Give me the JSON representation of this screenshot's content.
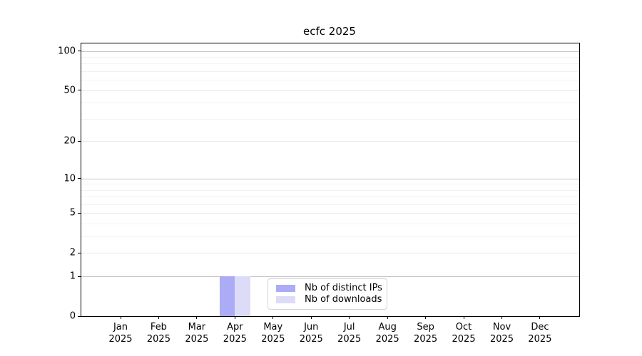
{
  "chart_data": {
    "type": "bar",
    "title": "ecfc 2025",
    "categories": [
      "Jan",
      "Feb",
      "Mar",
      "Apr",
      "May",
      "Jun",
      "Jul",
      "Aug",
      "Sep",
      "Oct",
      "Nov",
      "Dec"
    ],
    "x_year_label": "2025",
    "series": [
      {
        "name": "Nb of distinct IPs",
        "color": "#ababf6",
        "values": [
          0,
          0,
          0,
          1,
          0,
          0,
          0,
          0,
          0,
          0,
          0,
          0
        ]
      },
      {
        "name": "Nb of downloads",
        "color": "#dcdcf8",
        "values": [
          0,
          0,
          0,
          1,
          0,
          0,
          0,
          0,
          0,
          0,
          0,
          0
        ]
      }
    ],
    "y_axis": {
      "scale": "log1p",
      "ticks": [
        0,
        1,
        2,
        5,
        10,
        20,
        50,
        100
      ],
      "emphasized_gridlines": [
        1,
        10,
        100
      ],
      "minor_gridlines": [
        3,
        4,
        6,
        7,
        8,
        9,
        30,
        40,
        60,
        70,
        80,
        90
      ],
      "max": 115
    },
    "legend": {
      "position": "lower-center"
    },
    "grid": true,
    "colors": {
      "frame": "#000000",
      "text": "#000000",
      "grid_emphasized": "#c6c6c6",
      "grid_mid": "#e9e9e9",
      "grid_minor": "#f2f2f2",
      "legend_border": "#d4d4d4",
      "background": "#ffffff"
    }
  }
}
